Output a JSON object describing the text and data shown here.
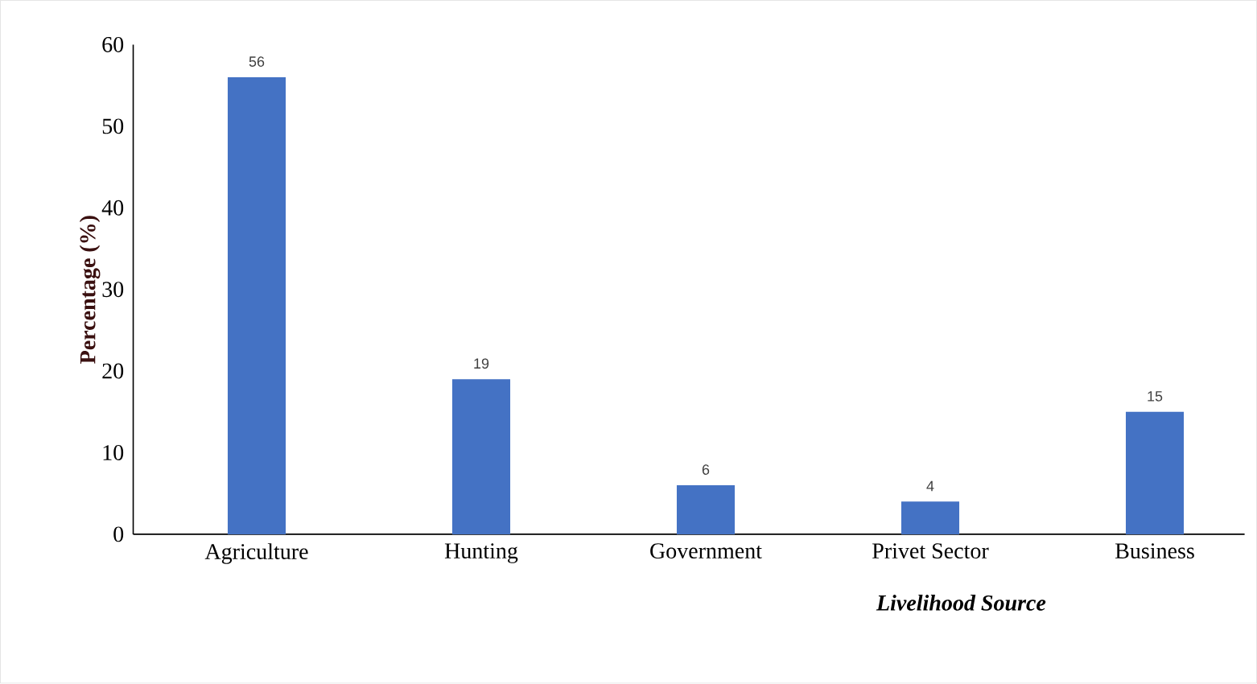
{
  "chart_data": {
    "type": "bar",
    "xlabel": "Livelihood Source",
    "ylabel": "Percentage (%)",
    "categories": [
      "Agriculture",
      "Hunting",
      "Government",
      "Privet Sector",
      "Business"
    ],
    "values": [
      56,
      19,
      6,
      4,
      15
    ],
    "color": "#4472c4",
    "data_labels": true,
    "ylim": [
      0,
      60
    ],
    "yticks": [
      0,
      10,
      20,
      30,
      40,
      50,
      60
    ]
  }
}
